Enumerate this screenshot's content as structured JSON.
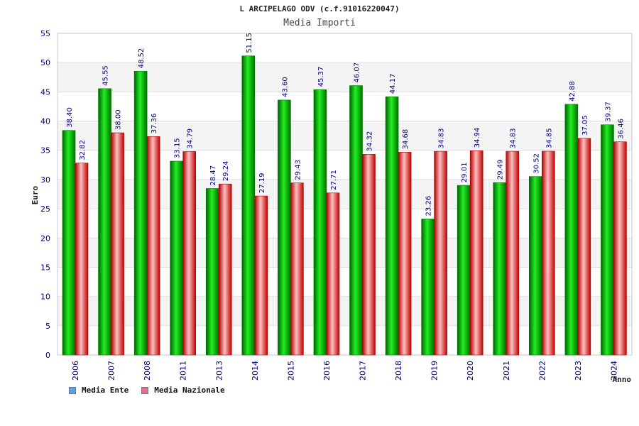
{
  "title": "L ARCIPELAGO ODV (c.f.91016220047)",
  "subtitle": "Media Importi",
  "colors": {
    "ente": "#00a000",
    "nazionale": "#e02020",
    "legend_ente": "#5aa0e6",
    "legend_nazionale": "#e07090",
    "band": "#f4f4f4",
    "labels": "#000080"
  },
  "legend": {
    "ente_label": "Media Ente",
    "nazionale_label": "Media Nazionale"
  },
  "chart_data": {
    "type": "bar",
    "title": "L ARCIPELAGO ODV (c.f.91016220047)",
    "subtitle": "Media Importi",
    "xlabel": "Anno",
    "ylabel": "Euro",
    "ylim": [
      0,
      55
    ],
    "ytick_step": 5,
    "grid": true,
    "legend_position": "bottom-left",
    "categories": [
      "2006",
      "2007",
      "2008",
      "2011",
      "2013",
      "2014",
      "2015",
      "2016",
      "2017",
      "2018",
      "2019",
      "2020",
      "2021",
      "2022",
      "2023",
      "2024"
    ],
    "series": [
      {
        "name": "Media Ente",
        "values": [
          38.4,
          45.55,
          48.52,
          33.15,
          28.47,
          51.15,
          43.6,
          45.37,
          46.07,
          44.17,
          23.26,
          29.01,
          29.49,
          30.52,
          42.88,
          39.37
        ]
      },
      {
        "name": "Media Nazionale",
        "values": [
          32.82,
          38.0,
          37.36,
          34.79,
          29.24,
          27.19,
          29.43,
          27.71,
          34.32,
          34.68,
          34.83,
          34.94,
          34.83,
          34.85,
          37.05,
          36.46
        ]
      }
    ]
  }
}
